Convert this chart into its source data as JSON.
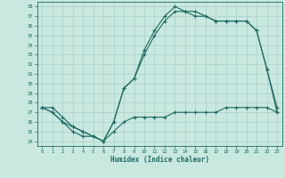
{
  "xlabel": "Humidex (Indice chaleur)",
  "xlim": [
    -0.5,
    23.5
  ],
  "ylim": [
    23.5,
    38.5
  ],
  "yticks": [
    24,
    25,
    26,
    27,
    28,
    29,
    30,
    31,
    32,
    33,
    34,
    35,
    36,
    37,
    38
  ],
  "xticks": [
    0,
    1,
    2,
    3,
    4,
    5,
    6,
    7,
    8,
    9,
    10,
    11,
    12,
    13,
    14,
    15,
    16,
    17,
    18,
    19,
    20,
    21,
    22,
    23
  ],
  "background_color": "#c8e8e0",
  "line_color": "#1e6b62",
  "grid_color": "#aacfc8",
  "line1_x": [
    0,
    1,
    2,
    3,
    4,
    5,
    6,
    7,
    8,
    9,
    10,
    11,
    12,
    13,
    14,
    15,
    16,
    17,
    18,
    19,
    20,
    21,
    22,
    23
  ],
  "line1_y": [
    27.5,
    27.0,
    26.0,
    25.0,
    24.5,
    24.5,
    24.0,
    26.0,
    29.5,
    30.5,
    33.5,
    35.5,
    37.0,
    38.0,
    37.5,
    37.5,
    37.0,
    36.5,
    36.5,
    36.5,
    36.5,
    35.5,
    31.5,
    27.0
  ],
  "line2_x": [
    0,
    1,
    2,
    3,
    4,
    5,
    6,
    7,
    8,
    9,
    10,
    11,
    12,
    13,
    14,
    15,
    16,
    17,
    18,
    19,
    20,
    21,
    22,
    23
  ],
  "line2_y": [
    27.5,
    27.0,
    26.0,
    25.5,
    25.0,
    24.5,
    24.0,
    26.0,
    29.5,
    30.5,
    33.0,
    35.0,
    36.5,
    37.5,
    37.5,
    37.0,
    37.0,
    36.5,
    36.5,
    36.5,
    36.5,
    35.5,
    31.5,
    27.5
  ],
  "line3_x": [
    0,
    1,
    2,
    3,
    4,
    5,
    6,
    7,
    8,
    9,
    10,
    11,
    12,
    13,
    14,
    15,
    16,
    17,
    18,
    19,
    20,
    21,
    22,
    23
  ],
  "line3_y": [
    27.5,
    27.5,
    26.5,
    25.5,
    25.0,
    24.5,
    24.0,
    25.0,
    26.0,
    26.5,
    26.5,
    26.5,
    26.5,
    27.0,
    27.0,
    27.0,
    27.0,
    27.0,
    27.5,
    27.5,
    27.5,
    27.5,
    27.5,
    27.0
  ]
}
